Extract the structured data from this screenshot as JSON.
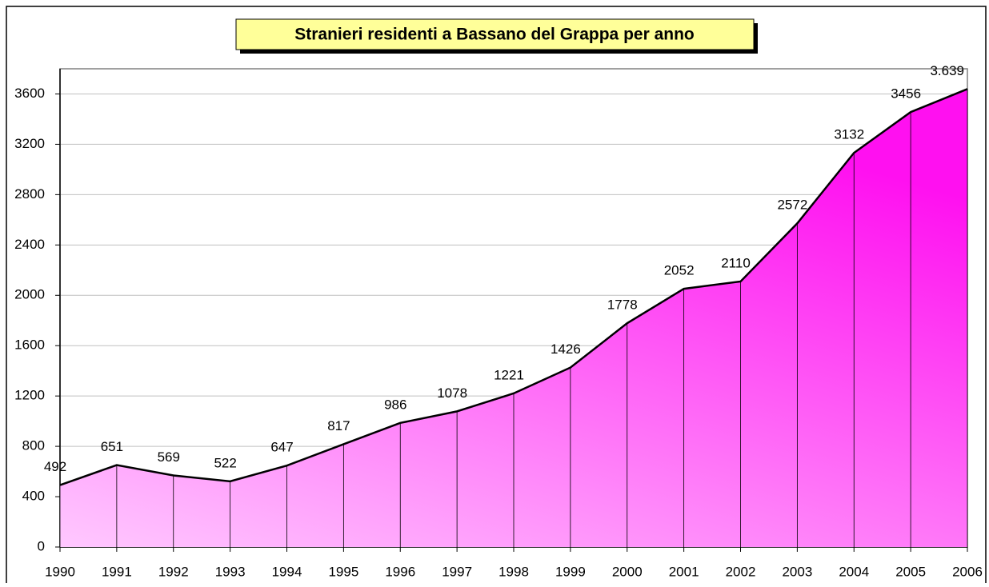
{
  "chart_data": {
    "type": "area",
    "title": "Stranieri residenti a Bassano del Grappa per anno",
    "categories": [
      "1990",
      "1991",
      "1992",
      "1993",
      "1994",
      "1995",
      "1996",
      "1997",
      "1998",
      "1999",
      "2000",
      "2001",
      "2002",
      "2003",
      "2004",
      "2005",
      "2006"
    ],
    "values": [
      492,
      651,
      569,
      522,
      647,
      817,
      986,
      1078,
      1221,
      1426,
      1778,
      2052,
      2110,
      2572,
      3132,
      3456,
      3639
    ],
    "value_labels": [
      "492",
      "651",
      "569",
      "522",
      "647",
      "817",
      "986",
      "1078",
      "1221",
      "1426",
      "1778",
      "2052",
      "2110",
      "2572",
      "3132",
      "3456",
      "3.639"
    ],
    "color": "#ff00ff",
    "ylim": [
      0,
      3800
    ],
    "yticks": [
      0,
      400,
      800,
      1200,
      1600,
      2000,
      2400,
      2800,
      3200,
      3600
    ],
    "grid": true
  }
}
